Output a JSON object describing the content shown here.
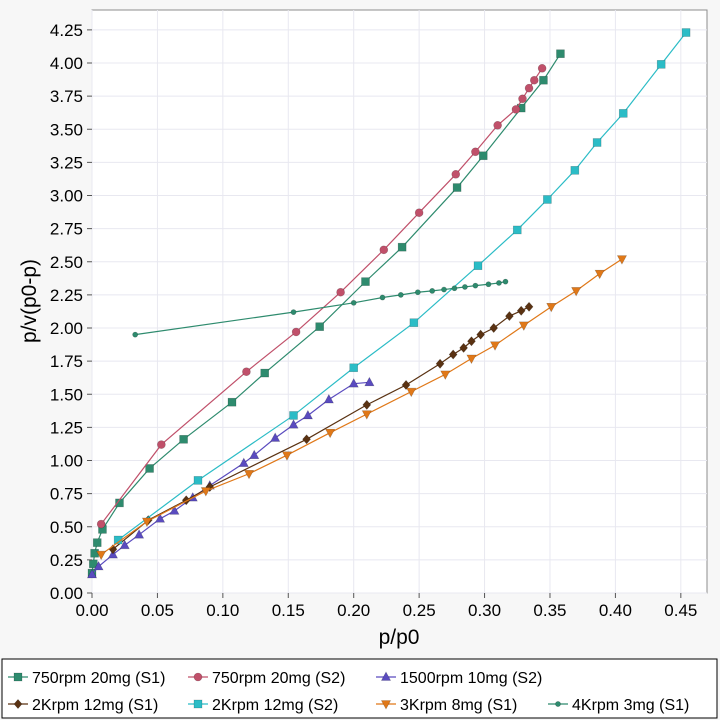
{
  "chart_data": {
    "type": "scatter",
    "title": "",
    "xlabel": "p/p0",
    "ylabel": "p/v(p0-p)",
    "xlim": [
      0,
      0.47
    ],
    "ylim": [
      0,
      4.4
    ],
    "x_ticks": [
      "0.00",
      "0.05",
      "0.10",
      "0.15",
      "0.20",
      "0.25",
      "0.30",
      "0.35",
      "0.40",
      "0.45"
    ],
    "y_ticks": [
      "0.00",
      "0.25",
      "0.50",
      "0.75",
      "1.00",
      "1.25",
      "1.50",
      "1.75",
      "2.00",
      "2.25",
      "2.50",
      "2.75",
      "3.00",
      "3.25",
      "3.50",
      "3.75",
      "4.00",
      "4.25"
    ],
    "grid": true,
    "legend_position": "bottom",
    "series": [
      {
        "name": "750rpm 20mg (S1)",
        "color": "#2e8b6e",
        "marker": "square",
        "points": [
          [
            0.0,
            0.15
          ],
          [
            0.001,
            0.22
          ],
          [
            0.002,
            0.3
          ],
          [
            0.004,
            0.38
          ],
          [
            0.008,
            0.48
          ],
          [
            0.021,
            0.68
          ],
          [
            0.044,
            0.94
          ],
          [
            0.07,
            1.16
          ],
          [
            0.107,
            1.44
          ],
          [
            0.132,
            1.66
          ],
          [
            0.174,
            2.01
          ],
          [
            0.209,
            2.35
          ],
          [
            0.237,
            2.61
          ],
          [
            0.279,
            3.06
          ],
          [
            0.299,
            3.3
          ],
          [
            0.328,
            3.66
          ],
          [
            0.345,
            3.87
          ],
          [
            0.358,
            4.07
          ]
        ]
      },
      {
        "name": "750rpm 20mg (S2)",
        "color": "#c0506a",
        "marker": "circle",
        "points": [
          [
            0.007,
            0.52
          ],
          [
            0.053,
            1.12
          ],
          [
            0.118,
            1.67
          ],
          [
            0.156,
            1.97
          ],
          [
            0.19,
            2.27
          ],
          [
            0.223,
            2.59
          ],
          [
            0.25,
            2.87
          ],
          [
            0.278,
            3.16
          ],
          [
            0.293,
            3.33
          ],
          [
            0.31,
            3.53
          ],
          [
            0.324,
            3.65
          ],
          [
            0.329,
            3.73
          ],
          [
            0.334,
            3.81
          ],
          [
            0.338,
            3.87
          ],
          [
            0.344,
            3.96
          ]
        ]
      },
      {
        "name": "1500rpm 10mg (S2)",
        "color": "#5a4bbf",
        "marker": "triangle",
        "points": [
          [
            0.0,
            0.14
          ],
          [
            0.005,
            0.2
          ],
          [
            0.016,
            0.29
          ],
          [
            0.025,
            0.36
          ],
          [
            0.036,
            0.44
          ],
          [
            0.052,
            0.56
          ],
          [
            0.063,
            0.62
          ],
          [
            0.077,
            0.72
          ],
          [
            0.09,
            0.81
          ],
          [
            0.116,
            0.98
          ],
          [
            0.124,
            1.04
          ],
          [
            0.14,
            1.17
          ],
          [
            0.154,
            1.27
          ],
          [
            0.165,
            1.34
          ],
          [
            0.181,
            1.46
          ],
          [
            0.2,
            1.58
          ],
          [
            0.212,
            1.59
          ]
        ]
      },
      {
        "name": "2Krpm 12mg (S1)",
        "color": "#5a3212",
        "marker": "diamond",
        "points": [
          [
            0.016,
            0.33
          ],
          [
            0.043,
            0.55
          ],
          [
            0.072,
            0.7
          ],
          [
            0.09,
            0.8
          ],
          [
            0.164,
            1.16
          ],
          [
            0.21,
            1.42
          ],
          [
            0.24,
            1.57
          ],
          [
            0.266,
            1.73
          ],
          [
            0.276,
            1.8
          ],
          [
            0.284,
            1.85
          ],
          [
            0.29,
            1.9
          ],
          [
            0.297,
            1.95
          ],
          [
            0.307,
            2.0
          ],
          [
            0.319,
            2.09
          ],
          [
            0.328,
            2.13
          ],
          [
            0.334,
            2.16
          ]
        ]
      },
      {
        "name": "2Krpm 12mg (S2)",
        "color": "#2bbcc6",
        "marker": "square",
        "points": [
          [
            0.02,
            0.4
          ],
          [
            0.081,
            0.85
          ],
          [
            0.154,
            1.34
          ],
          [
            0.2,
            1.7
          ],
          [
            0.246,
            2.04
          ],
          [
            0.295,
            2.47
          ],
          [
            0.325,
            2.74
          ],
          [
            0.348,
            2.97
          ],
          [
            0.369,
            3.19
          ],
          [
            0.386,
            3.4
          ],
          [
            0.406,
            3.62
          ],
          [
            0.435,
            3.99
          ],
          [
            0.454,
            4.23
          ]
        ]
      },
      {
        "name": "3Krpm 8mg (S1)",
        "color": "#e07818",
        "marker": "triangle-down",
        "points": [
          [
            0.007,
            0.29
          ],
          [
            0.042,
            0.54
          ],
          [
            0.087,
            0.77
          ],
          [
            0.12,
            0.9
          ],
          [
            0.149,
            1.04
          ],
          [
            0.182,
            1.21
          ],
          [
            0.21,
            1.35
          ],
          [
            0.244,
            1.52
          ],
          [
            0.27,
            1.65
          ],
          [
            0.29,
            1.77
          ],
          [
            0.308,
            1.87
          ],
          [
            0.33,
            2.02
          ],
          [
            0.351,
            2.16
          ],
          [
            0.37,
            2.28
          ],
          [
            0.388,
            2.41
          ],
          [
            0.405,
            2.52
          ]
        ]
      },
      {
        "name": "4Krpm 3mg (S1)",
        "color": "#2e8b6e",
        "marker": "small-circle",
        "points": [
          [
            0.033,
            1.95
          ],
          [
            0.154,
            2.12
          ],
          [
            0.2,
            2.19
          ],
          [
            0.222,
            2.23
          ],
          [
            0.236,
            2.25
          ],
          [
            0.249,
            2.27
          ],
          [
            0.26,
            2.28
          ],
          [
            0.269,
            2.29
          ],
          [
            0.277,
            2.3
          ],
          [
            0.285,
            2.31
          ],
          [
            0.293,
            2.32
          ],
          [
            0.303,
            2.33
          ],
          [
            0.311,
            2.34
          ],
          [
            0.316,
            2.35
          ]
        ]
      }
    ]
  }
}
